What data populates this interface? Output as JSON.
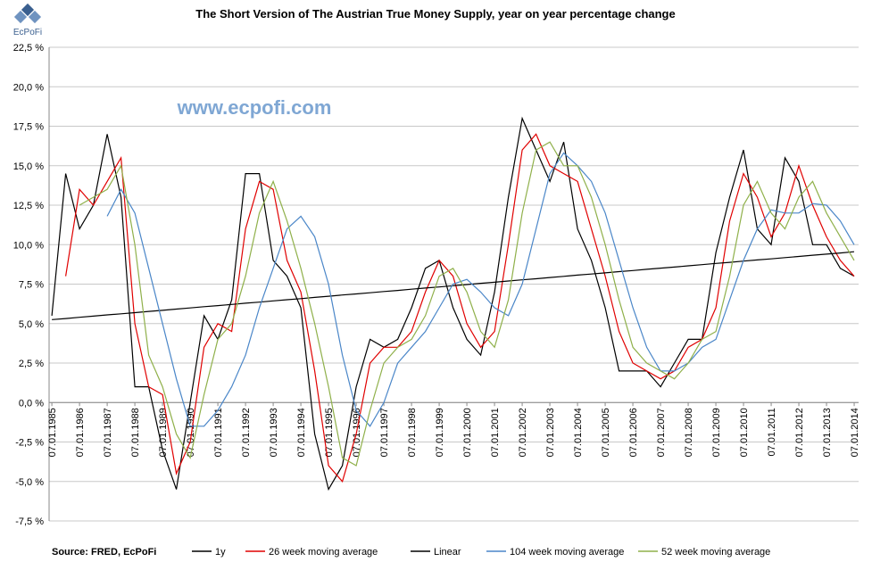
{
  "chart_data": {
    "type": "line",
    "title": "The Short Version of The Austrian True Money Supply, year on year percentage change",
    "logo": "EcPoFi",
    "watermark": "www.ecpofi.com",
    "source": "Source: FRED,  EcPoFi",
    "x": [
      1985,
      1985.5,
      1986,
      1986.5,
      1987,
      1987.5,
      1988,
      1988.5,
      1989,
      1989.5,
      1990,
      1990.5,
      1991,
      1991.5,
      1992,
      1992.5,
      1993,
      1993.5,
      1994,
      1994.5,
      1995,
      1995.5,
      1996,
      1996.5,
      1997,
      1997.5,
      1998,
      1998.5,
      1999,
      1999.5,
      2000,
      2000.5,
      2001,
      2001.5,
      2002,
      2002.5,
      2003,
      2003.5,
      2004,
      2004.5,
      2005,
      2005.5,
      2006,
      2006.5,
      2007,
      2007.5,
      2008,
      2008.5,
      2009,
      2009.5,
      2010,
      2010.5,
      2011,
      2011.5,
      2012,
      2012.5,
      2013,
      2013.5,
      2014
    ],
    "xlim": [
      1984.9,
      2014.16
    ],
    "xticks": [
      {
        "value": 1985,
        "label": "07.01.1985"
      },
      {
        "value": 1986,
        "label": "07.01.1986"
      },
      {
        "value": 1987,
        "label": "07.01.1987"
      },
      {
        "value": 1988,
        "label": "07.01.1988"
      },
      {
        "value": 1989,
        "label": "07.01.1989"
      },
      {
        "value": 1990,
        "label": "07.01.1990"
      },
      {
        "value": 1991,
        "label": "07.01.1991"
      },
      {
        "value": 1992,
        "label": "07.01.1992"
      },
      {
        "value": 1993,
        "label": "07.01.1993"
      },
      {
        "value": 1994,
        "label": "07.01.1994"
      },
      {
        "value": 1995,
        "label": "07.01.1995"
      },
      {
        "value": 1996,
        "label": "07.01.1996"
      },
      {
        "value": 1997,
        "label": "07.01.1997"
      },
      {
        "value": 1998,
        "label": "07.01.1998"
      },
      {
        "value": 1999,
        "label": "07.01.1999"
      },
      {
        "value": 2000,
        "label": "07.01.2000"
      },
      {
        "value": 2001,
        "label": "07.01.2001"
      },
      {
        "value": 2002,
        "label": "07.01.2002"
      },
      {
        "value": 2003,
        "label": "07.01.2003"
      },
      {
        "value": 2004,
        "label": "07.01.2004"
      },
      {
        "value": 2005,
        "label": "07.01.2005"
      },
      {
        "value": 2006,
        "label": "07.01.2006"
      },
      {
        "value": 2007,
        "label": "07.01.2007"
      },
      {
        "value": 2008,
        "label": "07.01.2008"
      },
      {
        "value": 2009,
        "label": "07.01.2009"
      },
      {
        "value": 2010,
        "label": "07.01.2010"
      },
      {
        "value": 2011,
        "label": "07.01.2011"
      },
      {
        "value": 2012,
        "label": "07.01.2012"
      },
      {
        "value": 2013,
        "label": "07.01.2013"
      },
      {
        "value": 2014,
        "label": "07.01.2014"
      }
    ],
    "ylim": [
      -7.5,
      22.5
    ],
    "yticks": [
      {
        "value": -7.5,
        "label": "-7,5 %"
      },
      {
        "value": -5,
        "label": "-5,0 %"
      },
      {
        "value": -2.5,
        "label": "-2,5 %"
      },
      {
        "value": 0,
        "label": "0,0 %"
      },
      {
        "value": 2.5,
        "label": "2,5 %"
      },
      {
        "value": 5,
        "label": "5,0 %"
      },
      {
        "value": 7.5,
        "label": "7,5 %"
      },
      {
        "value": 10,
        "label": "10,0 %"
      },
      {
        "value": 12.5,
        "label": "12,5 %"
      },
      {
        "value": 15,
        "label": "15,0 %"
      },
      {
        "value": 17.5,
        "label": "17,5 %"
      },
      {
        "value": 20,
        "label": "20,0 %"
      },
      {
        "value": 22.5,
        "label": "22,5 %"
      }
    ],
    "grid": true,
    "legend": "bottom",
    "series": [
      {
        "name": "1y",
        "color": "#000000",
        "values": [
          5.5,
          14.5,
          11,
          12.5,
          17,
          13,
          1,
          1,
          -3,
          -5.5,
          0,
          5.5,
          4,
          6.5,
          14.5,
          14.5,
          9,
          8,
          6,
          -2,
          -5.5,
          -4,
          1,
          4,
          3.5,
          4,
          6,
          8.5,
          9,
          6,
          4,
          3,
          7,
          13,
          18,
          16,
          14,
          16.5,
          11,
          9,
          6,
          2,
          2,
          2,
          1,
          2.5,
          4,
          4,
          9.5,
          13,
          16,
          11,
          10,
          15.5,
          14,
          10,
          10,
          8.5,
          8
        ]
      },
      {
        "name": "26 week moving average",
        "color": "#e00000",
        "values": [
          null,
          8,
          13.5,
          12.5,
          14,
          15.5,
          5,
          1,
          0.5,
          -4.5,
          -2.5,
          3.5,
          5,
          4.5,
          11,
          14,
          13.5,
          9,
          7,
          2,
          -4,
          -5,
          -2,
          2.5,
          3.5,
          3.5,
          4.5,
          7,
          9,
          8,
          5,
          3.5,
          4.5,
          10,
          16,
          17,
          15,
          14.5,
          14,
          11,
          8,
          4.5,
          2.5,
          2,
          1.5,
          2,
          3.5,
          4,
          6,
          11.5,
          14.5,
          13,
          10.5,
          12,
          15,
          12.5,
          10.5,
          9,
          8
        ]
      },
      {
        "name": "Linear",
        "color": "#000000",
        "values": [
          5.25,
          5.32,
          5.4,
          5.47,
          5.55,
          5.62,
          5.69,
          5.77,
          5.84,
          5.92,
          5.99,
          6.07,
          6.14,
          6.21,
          6.29,
          6.36,
          6.44,
          6.51,
          6.58,
          6.66,
          6.73,
          6.81,
          6.88,
          6.95,
          7.03,
          7.1,
          7.18,
          7.25,
          7.32,
          7.4,
          7.47,
          7.55,
          7.62,
          7.7,
          7.77,
          7.84,
          7.92,
          7.99,
          8.07,
          8.14,
          8.21,
          8.29,
          8.36,
          8.44,
          8.51,
          8.58,
          8.66,
          8.73,
          8.81,
          8.88,
          8.96,
          9.03,
          9.1,
          9.18,
          9.25,
          9.33,
          9.4,
          9.47,
          9.55
        ]
      },
      {
        "name": "104 week moving average",
        "color": "#4a86c8",
        "values": [
          null,
          null,
          null,
          null,
          11.8,
          13.5,
          12,
          8.5,
          5,
          1.5,
          -1.5,
          -1.5,
          -0.5,
          1,
          3,
          6,
          8.5,
          11,
          11.8,
          10.5,
          7.5,
          3,
          -0.5,
          -1.5,
          0,
          2.5,
          3.5,
          4.5,
          6,
          7.5,
          7.8,
          7,
          6,
          5.5,
          7.5,
          11,
          14.5,
          15.8,
          15,
          14,
          12,
          9,
          6,
          3.5,
          2,
          2,
          2.5,
          3.5,
          4,
          6.5,
          9,
          11,
          12.2,
          12,
          12,
          12.6,
          12.5,
          11.5,
          10
        ]
      },
      {
        "name": "52 week moving average",
        "color": "#8fb04a",
        "values": [
          null,
          null,
          12.5,
          13,
          13.5,
          15,
          10,
          3,
          1,
          -2,
          -3.5,
          0.5,
          4,
          5,
          8,
          12,
          14,
          11.5,
          8.5,
          5,
          1,
          -3.5,
          -4,
          -0.5,
          2.5,
          3.5,
          4,
          5.5,
          8,
          8.5,
          7,
          4.5,
          3.5,
          6.5,
          12,
          16,
          16.5,
          15,
          15,
          13,
          10,
          6.5,
          3.5,
          2.5,
          2,
          1.5,
          2.5,
          4,
          4.5,
          8,
          12.5,
          14,
          12,
          11,
          13,
          14,
          12,
          10.5,
          9
        ]
      }
    ]
  }
}
